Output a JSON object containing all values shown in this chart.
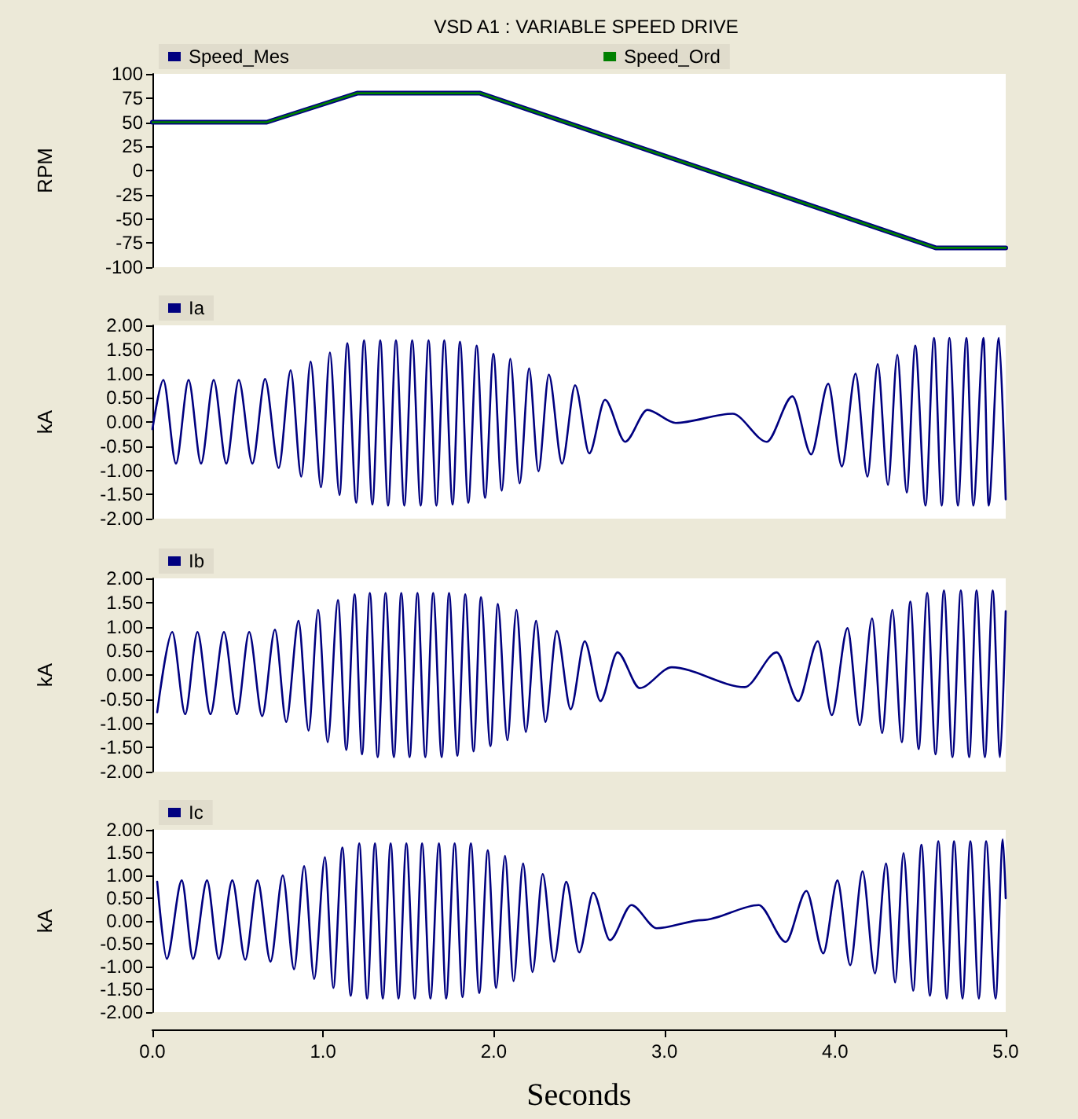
{
  "chart_data": [
    {
      "type": "line",
      "title": "VSD A1 : VARIABLE SPEED DRIVE",
      "ylabel": "RPM",
      "legend": "top",
      "tick_labels": "y",
      "xlim": [
        0,
        5
      ],
      "ylim": [
        -100,
        100
      ],
      "yticks": [
        100,
        75,
        50,
        25,
        0,
        -25,
        -50,
        -75,
        -100
      ],
      "series": [
        {
          "name": "Speed_Mes",
          "color": "#000080",
          "x": [
            0,
            0.67,
            1.2,
            1.92,
            4.59,
            5
          ],
          "values": [
            50,
            50,
            80,
            80,
            -80,
            -80
          ]
        },
        {
          "name": "Speed_Ord",
          "color": "#008000",
          "x": [
            0,
            0.67,
            1.2,
            1.92,
            4.59,
            5
          ],
          "values": [
            50,
            50,
            80,
            80,
            -80,
            -80
          ]
        }
      ]
    },
    {
      "type": "line",
      "ylabel": "kA",
      "legend": "top",
      "tick_labels": "y",
      "xlim": [
        0,
        5
      ],
      "ylim": [
        -2,
        2
      ],
      "yticks": [
        {
          "value": 2,
          "label": "2.00"
        },
        {
          "value": 1.5,
          "label": "1.50"
        },
        {
          "value": 1,
          "label": "1.00"
        },
        {
          "value": 0.5,
          "label": "0.50"
        },
        {
          "value": 0,
          "label": "0.00"
        },
        {
          "value": -0.5,
          "label": "-0.50"
        },
        {
          "value": -1,
          "label": "-1.00"
        },
        {
          "value": -1.5,
          "label": "-1.50"
        },
        {
          "value": -2,
          "label": "-2.00"
        }
      ],
      "series": [
        {
          "name": "Ia",
          "color": "#000080",
          "x": [
            0,
            0.064,
            0.138,
            0.212,
            0.285,
            0.359,
            0.433,
            0.506,
            0.586,
            0.66,
            0.74,
            0.81,
            0.872,
            0.927,
            0.988,
            1.04,
            1.096,
            1.142,
            1.194,
            1.24,
            1.289,
            1.335,
            1.381,
            1.427,
            1.476,
            1.522,
            1.572,
            1.618,
            1.664,
            1.71,
            1.759,
            1.802,
            1.851,
            1.9,
            1.949,
            1.998,
            2.047,
            2.097,
            2.152,
            2.207,
            2.262,
            2.323,
            2.4,
            2.477,
            2.56,
            2.652,
            2.77,
            2.9,
            3.066,
            3.4,
            3.6,
            3.75,
            3.86,
            3.96,
            4.04,
            4.12,
            4.19,
            4.25,
            4.31,
            4.365,
            4.42,
            4.47,
            4.53,
            4.58,
            4.625,
            4.67,
            4.72,
            4.77,
            4.81,
            4.87,
            4.9,
            4.96,
            5
          ],
          "values": [
            -0.15,
            0.87,
            -0.86,
            0.87,
            -0.86,
            0.87,
            -0.86,
            0.87,
            -0.86,
            0.89,
            -0.95,
            1.07,
            -1.13,
            1.25,
            -1.35,
            1.44,
            -1.51,
            1.63,
            -1.67,
            1.69,
            -1.71,
            1.69,
            -1.73,
            1.69,
            -1.73,
            1.69,
            -1.73,
            1.69,
            -1.73,
            1.69,
            -1.71,
            1.66,
            -1.67,
            1.58,
            -1.57,
            1.41,
            -1.42,
            1.31,
            -1.27,
            1.11,
            -1.02,
            0.98,
            -0.86,
            0.76,
            -0.65,
            0.46,
            -0.41,
            0.25,
            -0.02,
            0.17,
            -0.41,
            0.53,
            -0.67,
            0.79,
            -0.92,
            1.0,
            -1.13,
            1.2,
            -1.3,
            1.39,
            -1.46,
            1.58,
            -1.73,
            1.74,
            -1.73,
            1.74,
            -1.73,
            1.74,
            -1.73,
            1.74,
            -1.73,
            1.74,
            -1.6
          ]
        }
      ]
    },
    {
      "type": "line",
      "ylabel": "kA",
      "legend": "top",
      "tick_labels": "y",
      "xlim": [
        0,
        5
      ],
      "ylim": [
        -2,
        2
      ],
      "yticks": [
        {
          "value": 2,
          "label": "2.00"
        },
        {
          "value": 1.5,
          "label": "1.50"
        },
        {
          "value": 1,
          "label": "1.00"
        },
        {
          "value": 0.5,
          "label": "0.50"
        },
        {
          "value": 0,
          "label": "0.00"
        },
        {
          "value": -0.5,
          "label": "-0.50"
        },
        {
          "value": -1,
          "label": "-1.00"
        },
        {
          "value": -1.5,
          "label": "-1.50"
        },
        {
          "value": -2,
          "label": "-2.00"
        }
      ],
      "series": [
        {
          "name": "Ib",
          "color": "#000080",
          "x": [
            0.028,
            0.116,
            0.192,
            0.264,
            0.34,
            0.419,
            0.495,
            0.567,
            0.643,
            0.718,
            0.784,
            0.856,
            0.915,
            0.971,
            1.027,
            1.087,
            1.136,
            1.185,
            1.228,
            1.274,
            1.32,
            1.366,
            1.415,
            1.458,
            1.507,
            1.553,
            1.599,
            1.645,
            1.695,
            1.738,
            1.787,
            1.833,
            1.882,
            1.925,
            1.981,
            2.024,
            2.08,
            2.133,
            2.188,
            2.248,
            2.303,
            2.369,
            2.451,
            2.533,
            2.625,
            2.725,
            2.855,
            3.043,
            3.471,
            3.658,
            3.784,
            3.899,
            3.981,
            4.073,
            4.145,
            4.217,
            4.276,
            4.336,
            4.391,
            4.441,
            4.49,
            4.54,
            4.589,
            4.638,
            4.688,
            4.737,
            4.786,
            4.829,
            4.878,
            4.924,
            4.967,
            5
          ],
          "values": [
            -0.77,
            0.89,
            -0.81,
            0.89,
            -0.81,
            0.89,
            -0.81,
            0.89,
            -0.85,
            0.94,
            -0.97,
            1.12,
            -1.15,
            1.35,
            -1.39,
            1.55,
            -1.55,
            1.67,
            -1.64,
            1.7,
            -1.7,
            1.7,
            -1.7,
            1.7,
            -1.7,
            1.7,
            -1.7,
            1.7,
            -1.7,
            1.7,
            -1.67,
            1.67,
            -1.58,
            1.61,
            -1.47,
            1.47,
            -1.35,
            1.35,
            -1.18,
            1.12,
            -0.97,
            0.91,
            -0.71,
            0.7,
            -0.54,
            0.47,
            -0.27,
            0.16,
            -0.25,
            0.47,
            -0.54,
            0.7,
            -0.83,
            0.97,
            -1.04,
            1.17,
            -1.2,
            1.35,
            -1.39,
            1.52,
            -1.53,
            1.7,
            -1.64,
            1.75,
            -1.7,
            1.75,
            -1.7,
            1.75,
            -1.7,
            1.75,
            -1.7,
            1.32
          ]
        }
      ]
    },
    {
      "type": "line",
      "ylabel": "kA",
      "xlabel": "Seconds",
      "legend": "top",
      "xlim": [
        0,
        5
      ],
      "xticks": [
        {
          "value": 0,
          "label": "0.0"
        },
        {
          "value": 1,
          "label": "1.0"
        },
        {
          "value": 2,
          "label": "2.0"
        },
        {
          "value": 3,
          "label": "3.0"
        },
        {
          "value": 4,
          "label": "4.0"
        },
        {
          "value": 5,
          "label": "5.0"
        }
      ],
      "ylim": [
        -2,
        2
      ],
      "yticks": [
        {
          "value": 2,
          "label": "2.00"
        },
        {
          "value": 1.5,
          "label": "1.50"
        },
        {
          "value": 1,
          "label": "1.00"
        },
        {
          "value": 0.5,
          "label": "0.50"
        },
        {
          "value": 0,
          "label": "0.00"
        },
        {
          "value": -0.5,
          "label": "-0.50"
        },
        {
          "value": -1,
          "label": "-1.00"
        },
        {
          "value": -1.5,
          "label": "-1.50"
        },
        {
          "value": -2,
          "label": "-2.00"
        }
      ],
      "series": [
        {
          "name": "Ic",
          "color": "#000080",
          "x": [
            0.028,
            0.084,
            0.172,
            0.238,
            0.32,
            0.389,
            0.468,
            0.544,
            0.616,
            0.692,
            0.764,
            0.83,
            0.889,
            0.948,
            1.011,
            1.06,
            1.113,
            1.162,
            1.212,
            1.258,
            1.304,
            1.35,
            1.396,
            1.442,
            1.488,
            1.537,
            1.58,
            1.629,
            1.679,
            1.721,
            1.771,
            1.817,
            1.866,
            1.915,
            1.965,
            2.014,
            2.066,
            2.116,
            2.172,
            2.227,
            2.287,
            2.353,
            2.425,
            2.501,
            2.583,
            2.681,
            2.807,
            2.955,
            3.224,
            3.553,
            3.711,
            3.832,
            3.931,
            4.014,
            4.089,
            4.161,
            4.234,
            4.299,
            4.352,
            4.401,
            4.458,
            4.506,
            4.556,
            4.605,
            4.655,
            4.697,
            4.747,
            4.793,
            4.843,
            4.885,
            4.941,
            4.983,
            5
          ],
          "values": [
            0.86,
            -0.83,
            0.89,
            -0.83,
            0.89,
            -0.83,
            0.89,
            -0.85,
            0.89,
            -0.89,
            1.0,
            -1.06,
            1.2,
            -1.27,
            1.4,
            -1.47,
            1.61,
            -1.64,
            1.7,
            -1.7,
            1.7,
            -1.7,
            1.7,
            -1.7,
            1.7,
            -1.7,
            1.7,
            -1.7,
            1.7,
            -1.7,
            1.7,
            -1.67,
            1.7,
            -1.58,
            1.55,
            -1.47,
            1.43,
            -1.32,
            1.26,
            -1.12,
            1.03,
            -0.89,
            0.86,
            -0.69,
            0.62,
            -0.42,
            0.35,
            -0.16,
            0.02,
            0.35,
            -0.46,
            0.66,
            -0.71,
            0.89,
            -0.97,
            1.09,
            -1.15,
            1.26,
            -1.35,
            1.49,
            -1.53,
            1.67,
            -1.64,
            1.75,
            -1.7,
            1.75,
            -1.7,
            1.75,
            -1.7,
            1.75,
            -1.7,
            1.79,
            0.5
          ]
        }
      ]
    }
  ]
}
